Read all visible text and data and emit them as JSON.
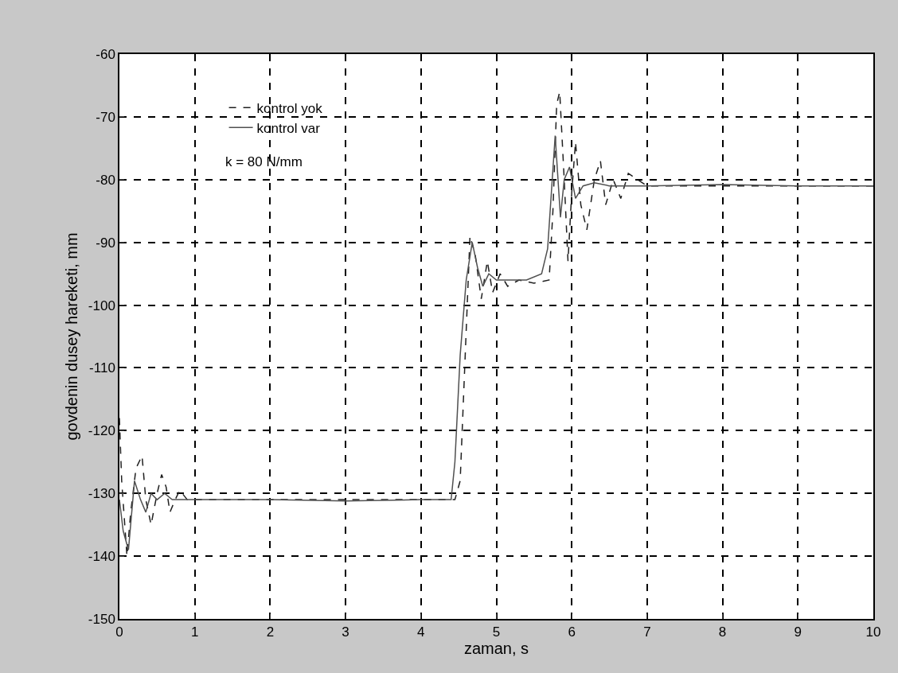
{
  "chart_data": {
    "type": "line",
    "xlabel": "zaman, s",
    "ylabel": "govdenin dusey hareketi, mm",
    "annotations": [
      "k = 80 N/mm"
    ],
    "xlim": [
      0,
      10
    ],
    "xticks": [
      0,
      1,
      2,
      3,
      4,
      5,
      6,
      7,
      8,
      9,
      10
    ],
    "ylim": [
      -150,
      -60
    ],
    "yticks": [
      -60,
      -70,
      -80,
      -90,
      -100,
      -110,
      -120,
      -130,
      -140,
      -150
    ],
    "grid": true,
    "legend": "top left",
    "marker": "none",
    "series": [
      {
        "name": "kontrol yok",
        "color": "#202020",
        "line_style": "dashed",
        "x": [
          0,
          0.03,
          0.1,
          0.15,
          0.22,
          0.3,
          0.35,
          0.42,
          0.5,
          0.56,
          0.62,
          0.67,
          0.74,
          0.8,
          0.9,
          1.0,
          2,
          3,
          4,
          4.45,
          4.52,
          4.58,
          4.65,
          4.72,
          4.8,
          4.88,
          4.95,
          5.05,
          5.15,
          5.3,
          5.5,
          5.7,
          5.75,
          5.8,
          5.84,
          5.9,
          5.95,
          6.0,
          6.05,
          6.12,
          6.2,
          6.3,
          6.38,
          6.45,
          6.55,
          6.65,
          6.75,
          7,
          8,
          9,
          10
        ],
        "values": [
          -118,
          -128,
          -140,
          -133,
          -126,
          -124,
          -131,
          -135,
          -130,
          -127,
          -129,
          -133,
          -131,
          -129.5,
          -131,
          -131,
          -131,
          -131,
          -131,
          -131,
          -128,
          -110,
          -89,
          -92,
          -99,
          -93,
          -98,
          -95,
          -97,
          -96,
          -96.5,
          -96,
          -85,
          -68,
          -66,
          -80,
          -93,
          -82,
          -74,
          -84,
          -88,
          -80,
          -77,
          -84,
          -80,
          -83,
          -79,
          -81,
          -81,
          -81,
          -81
        ]
      },
      {
        "name": "kontrol var",
        "color": "#505050",
        "line_style": "solid",
        "x": [
          0,
          0.05,
          0.12,
          0.2,
          0.28,
          0.35,
          0.42,
          0.5,
          0.6,
          0.7,
          0.8,
          1,
          2,
          3,
          4,
          4.4,
          4.45,
          4.52,
          4.6,
          4.68,
          4.75,
          4.82,
          4.9,
          5,
          5.2,
          5.4,
          5.6,
          5.68,
          5.73,
          5.78,
          5.85,
          5.9,
          5.97,
          6.05,
          6.15,
          6.3,
          6.5,
          7,
          8,
          9,
          10
        ],
        "values": [
          -131,
          -136,
          -139,
          -128,
          -131,
          -133,
          -130,
          -131,
          -130,
          -131,
          -131,
          -131,
          -131,
          -131.2,
          -131,
          -131,
          -125,
          -108,
          -96,
          -90,
          -94,
          -97,
          -95,
          -96,
          -96,
          -96,
          -95,
          -91,
          -82,
          -73,
          -86,
          -80,
          -78,
          -83,
          -81,
          -80.5,
          -81,
          -81,
          -80.8,
          -81,
          -81
        ]
      }
    ]
  }
}
